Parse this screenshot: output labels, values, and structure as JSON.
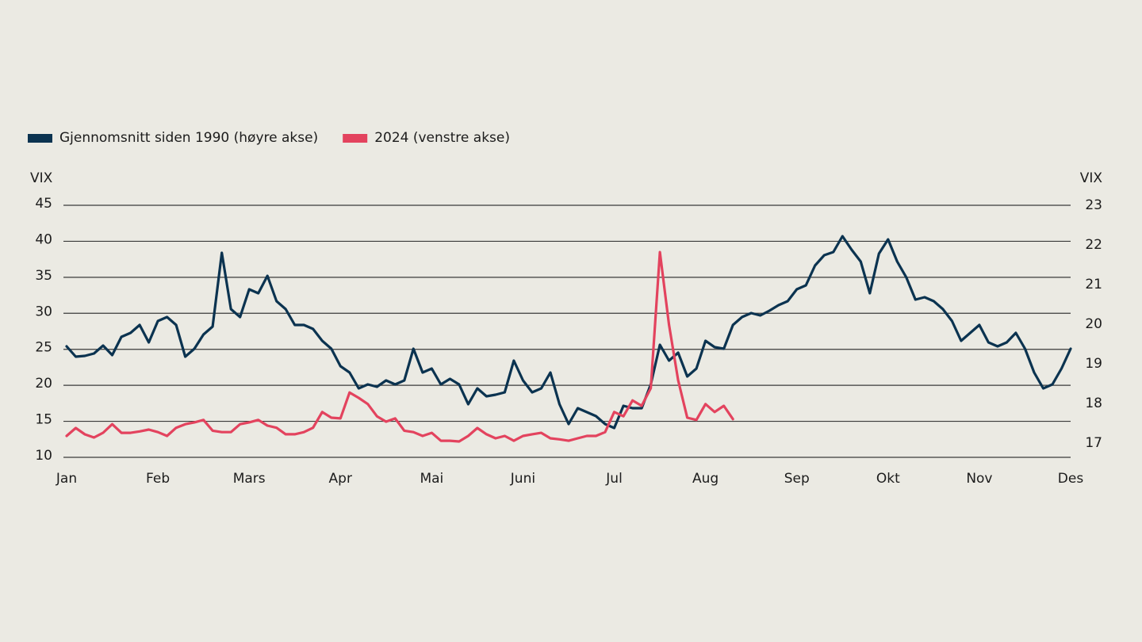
{
  "chart_data": {
    "type": "line",
    "ylabel": "VIX",
    "y2label": "VIX",
    "xlim": [
      0,
      11
    ],
    "xticks": [
      {
        "value": 0,
        "label": "Jan"
      },
      {
        "value": 1,
        "label": "Feb"
      },
      {
        "value": 2,
        "label": "Mars"
      },
      {
        "value": 3,
        "label": "Apr"
      },
      {
        "value": 4,
        "label": "Mai"
      },
      {
        "value": 5,
        "label": "Juni"
      },
      {
        "value": 6,
        "label": "Jul"
      },
      {
        "value": 7,
        "label": "Aug"
      },
      {
        "value": 8,
        "label": "Sep"
      },
      {
        "value": 9,
        "label": "Okt"
      },
      {
        "value": 10,
        "label": "Nov"
      },
      {
        "value": 11,
        "label": "Des"
      }
    ],
    "ylim": [
      10,
      45
    ],
    "yticks": [
      10,
      15,
      20,
      25,
      30,
      35,
      40,
      45
    ],
    "y2lim": [
      16.64,
      23
    ],
    "y2ticks": [
      17,
      18,
      19,
      20,
      21,
      22,
      23
    ],
    "grid": true,
    "legend": "top-left",
    "x": [
      0,
      0.1,
      0.2,
      0.3,
      0.4,
      0.5,
      0.6,
      0.7,
      0.8,
      0.9,
      1,
      1.1,
      1.2,
      1.3,
      1.4,
      1.5,
      1.6,
      1.7,
      1.8,
      1.9,
      2,
      2.1,
      2.2,
      2.3,
      2.4,
      2.5,
      2.6,
      2.7,
      2.8,
      2.9,
      3,
      3.1,
      3.2,
      3.3,
      3.4,
      3.5,
      3.6,
      3.7,
      3.8,
      3.9,
      4,
      4.1,
      4.2,
      4.3,
      4.4,
      4.5,
      4.6,
      4.7,
      4.8,
      4.9,
      5,
      5.1,
      5.2,
      5.3,
      5.4,
      5.5,
      5.6,
      5.7,
      5.8,
      5.9,
      6,
      6.1,
      6.2,
      6.3,
      6.4,
      6.5,
      6.6,
      6.7,
      6.8,
      6.9,
      7,
      7.1,
      7.2,
      7.3,
      7.4,
      7.5,
      7.6,
      7.7,
      7.8,
      7.9,
      8,
      8.1,
      8.2,
      8.3,
      8.4,
      8.5,
      8.6,
      8.7,
      8.8,
      8.9,
      9,
      9.1,
      9.2,
      9.3,
      9.4,
      9.5,
      9.6,
      9.7,
      9.8,
      9.9,
      10,
      10.1,
      10.2,
      10.3,
      10.4,
      10.5,
      10.6,
      10.7,
      10.8,
      10.9,
      11
    ],
    "series": [
      {
        "name": "Gjennomsnitt siden 1990 (høyre akse)",
        "color": "#0b3350",
        "axis": "y2",
        "values": [
          19.44,
          19.18,
          19.2,
          19.26,
          19.46,
          19.22,
          19.68,
          19.78,
          19.98,
          19.54,
          20.08,
          20.18,
          19.98,
          19.18,
          19.38,
          19.74,
          19.94,
          21.8,
          20.38,
          20.18,
          20.88,
          20.78,
          21.22,
          20.58,
          20.38,
          19.98,
          19.98,
          19.88,
          19.58,
          19.38,
          18.94,
          18.78,
          18.38,
          18.48,
          18.42,
          18.58,
          18.48,
          18.58,
          19.38,
          18.78,
          18.88,
          18.48,
          18.62,
          18.48,
          17.98,
          18.38,
          18.18,
          18.22,
          18.28,
          19.08,
          18.58,
          18.28,
          18.38,
          18.78,
          17.98,
          17.48,
          17.88,
          17.78,
          17.68,
          17.48,
          17.38,
          17.94,
          17.88,
          17.88,
          18.48,
          19.48,
          19.08,
          19.28,
          18.68,
          18.88,
          19.58,
          19.42,
          19.38,
          19.98,
          20.18,
          20.28,
          20.22,
          20.34,
          20.48,
          20.58,
          20.88,
          20.98,
          21.48,
          21.74,
          21.82,
          22.22,
          21.88,
          21.58,
          20.78,
          21.78,
          22.14,
          21.58,
          21.18,
          20.62,
          20.68,
          20.58,
          20.38,
          20.08,
          19.58,
          19.78,
          19.98,
          19.54,
          19.44,
          19.54,
          19.78,
          19.38,
          18.78,
          18.38,
          18.48,
          18.88,
          19.38
        ]
      },
      {
        "name": "2024 (venstre akse)",
        "color": "#e3435e",
        "values": [
          12.97,
          14.07,
          13.19,
          12.75,
          13.41,
          14.6,
          13.4,
          13.4,
          13.6,
          13.85,
          13.5,
          12.97,
          14.1,
          14.6,
          14.85,
          15.2,
          13.7,
          13.5,
          13.5,
          14.6,
          14.85,
          15.2,
          14.4,
          14.1,
          13.2,
          13.2,
          13.5,
          14.1,
          16.3,
          15.5,
          15.4,
          19.0,
          18.25,
          17.4,
          15.7,
          14.95,
          15.4,
          13.7,
          13.5,
          12.97,
          13.4,
          12.3,
          12.3,
          12.2,
          12.97,
          14.07,
          13.2,
          12.64,
          12.97,
          12.3,
          12.97,
          13.2,
          13.4,
          12.64,
          12.5,
          12.3,
          12.64,
          12.97,
          12.97,
          13.5,
          16.3,
          15.7,
          17.9,
          17.15,
          19.6,
          38.5,
          28.4,
          20.7,
          15.5,
          15.2,
          17.4,
          16.3,
          17.15,
          15.3,
          null,
          null,
          null,
          null,
          null,
          null,
          null,
          null,
          null,
          null,
          null,
          null,
          null,
          null,
          null,
          null,
          null,
          null,
          null,
          null,
          null,
          null,
          null,
          null,
          null,
          null,
          null,
          null,
          null,
          null,
          null,
          null,
          null,
          null,
          null,
          null,
          null
        ]
      }
    ]
  }
}
